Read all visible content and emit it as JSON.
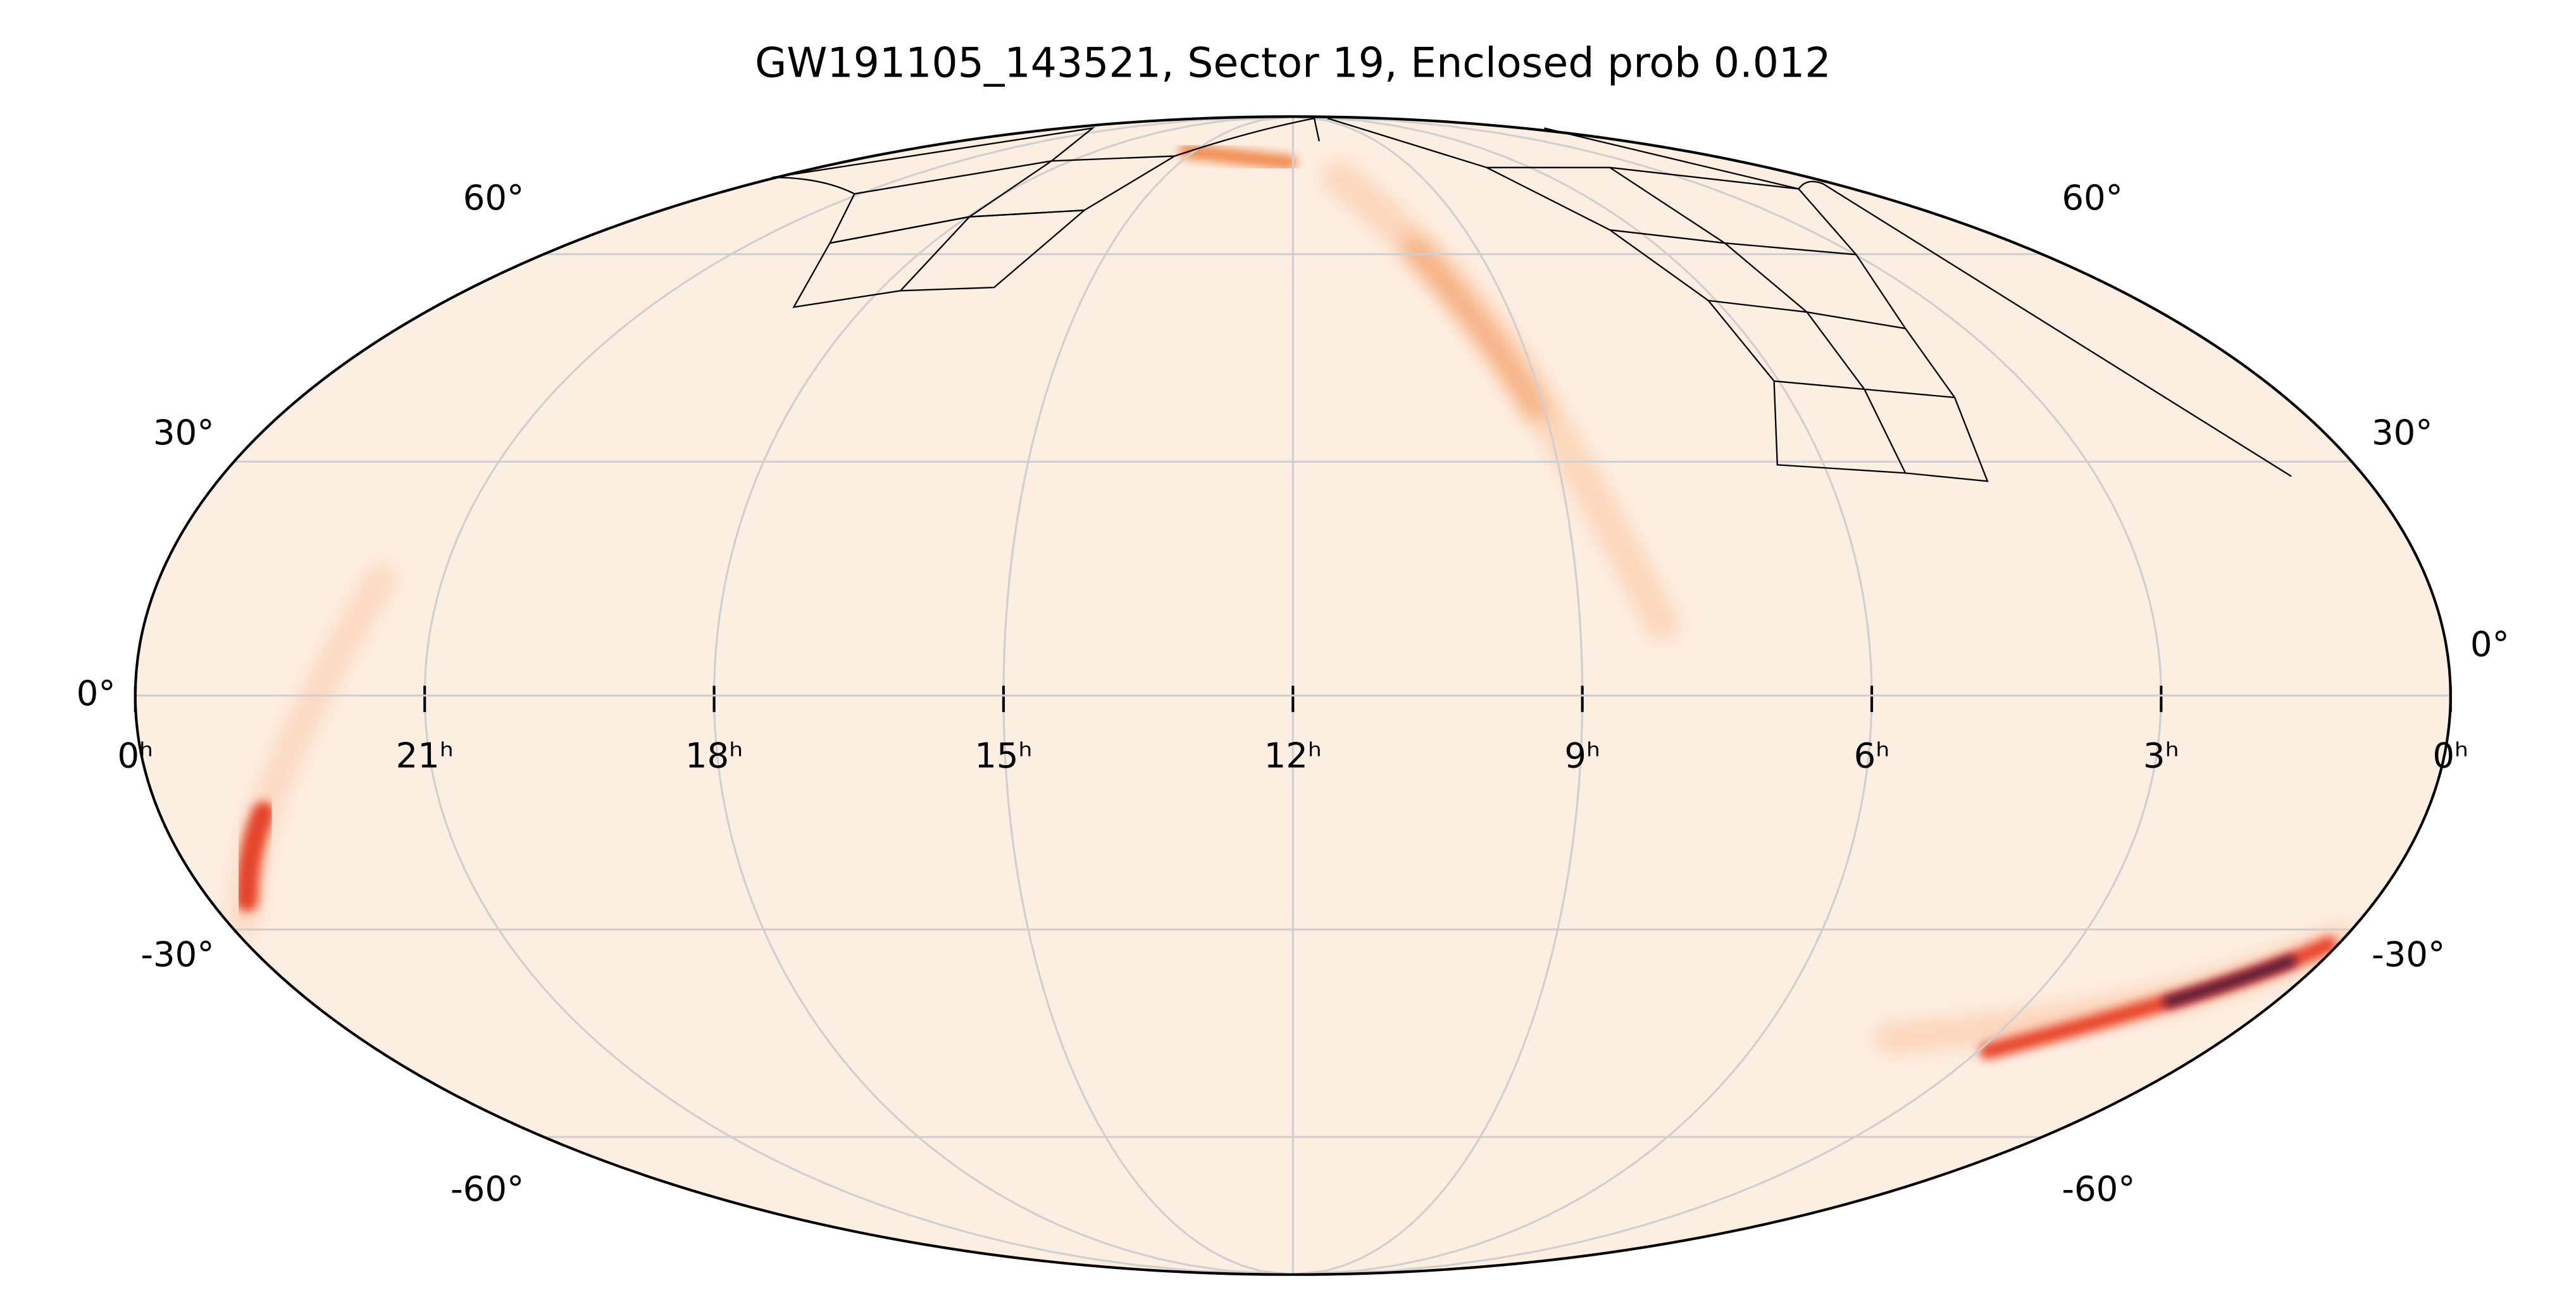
{
  "chart_data": {
    "type": "mollweide",
    "title": "GW191105_143521, Sector 19, Enclosed prob 0.012",
    "xlim": [
      24,
      0
    ],
    "xticks": [
      {
        "value": 24,
        "label": "0ʰ"
      },
      {
        "value": 21,
        "label": "21ʰ"
      },
      {
        "value": 18,
        "label": "18ʰ"
      },
      {
        "value": 15,
        "label": "15ʰ"
      },
      {
        "value": 12,
        "label": "12ʰ"
      },
      {
        "value": 9,
        "label": "9ʰ"
      },
      {
        "value": 6,
        "label": "6ʰ"
      },
      {
        "value": 3,
        "label": "3ʰ"
      },
      {
        "value": 0,
        "label": "0ʰ"
      }
    ],
    "ylim": [
      -90,
      90
    ],
    "yticks": [
      {
        "value": 60,
        "label": "60°"
      },
      {
        "value": 30,
        "label": "30°"
      },
      {
        "value": 0,
        "label": "0°"
      },
      {
        "value": -30,
        "label": "-30°"
      },
      {
        "value": -60,
        "label": "-60°"
      }
    ],
    "grid": true,
    "background_color": "#fdeee2"
  }
}
